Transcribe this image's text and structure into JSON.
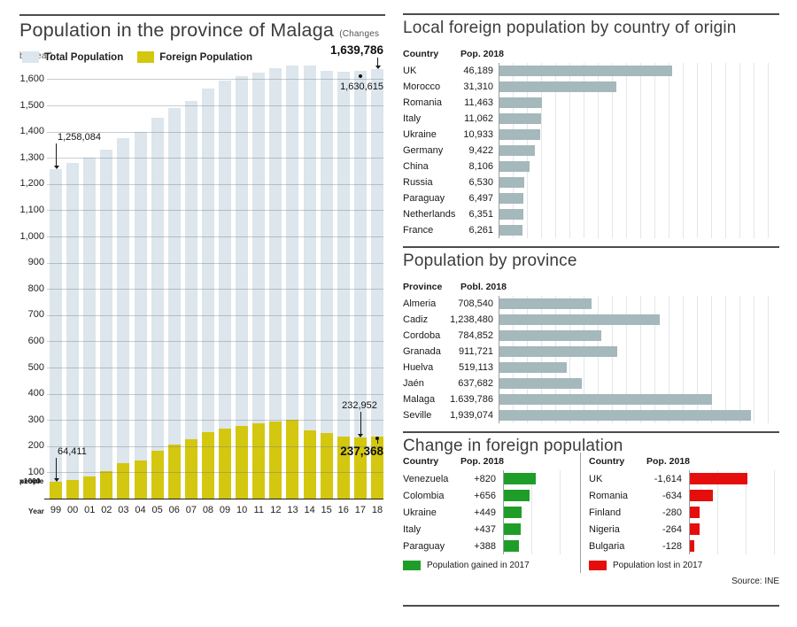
{
  "panels": {
    "malaga": {
      "title": "Population in the province of Malaga",
      "subtitle": "(Changes by year)",
      "legend_total": "Total Population",
      "legend_foreign": "Foreign Population",
      "x_axis_label": "Year",
      "y_unit_line1": "x1000",
      "y_unit_line2": "people"
    },
    "foreign_by_country": {
      "title": "Local foreign population by country of origin",
      "col_country": "Country",
      "col_value": "Pop. 2018"
    },
    "by_province": {
      "title": "Population by province",
      "col_country": "Province",
      "col_value": "Pobl. 2018"
    },
    "change": {
      "title": "Change in foreign population",
      "gained_col_country": "Country",
      "gained_col_value": "Pop. 2018",
      "lost_col_country": "Country",
      "lost_col_value": "Pop. 2018",
      "legend_gained": "Population gained in 2017",
      "legend_lost": "Population lost in 2017"
    },
    "source": "Source: INE"
  },
  "chart_data": [
    {
      "id": "malaga-population-by-year",
      "type": "bar",
      "title": "Population in the province of Malaga",
      "subtitle": "(Changes by year)",
      "xlabel": "Year",
      "ylabel": "x1000 people",
      "ylim": [
        0,
        1680
      ],
      "ytick_step": 100,
      "yticks": [
        "100",
        "200",
        "300",
        "400",
        "500",
        "600",
        "700",
        "800",
        "900",
        "1,000",
        "1,100",
        "1,200",
        "1,300",
        "1,400",
        "1,500",
        "1,600"
      ],
      "grid": true,
      "legend_position": "top-left",
      "categories": [
        "99",
        "00",
        "01",
        "02",
        "03",
        "04",
        "05",
        "06",
        "07",
        "08",
        "09",
        "10",
        "11",
        "12",
        "13",
        "14",
        "15",
        "16",
        "17",
        "18"
      ],
      "series": [
        {
          "name": "Total Population",
          "color": "#dce6ec",
          "values_thousands": [
            1258,
            1279,
            1302,
            1330,
            1375,
            1398,
            1453,
            1491,
            1518,
            1563,
            1593,
            1610,
            1626,
            1641,
            1653,
            1653,
            1632,
            1629,
            1631,
            1640
          ]
        },
        {
          "name": "Foreign Population",
          "color": "#d4c70f",
          "values_thousands": [
            64.4,
            72,
            83,
            106,
            134,
            146,
            182,
            207,
            226,
            252,
            267,
            276,
            287,
            295,
            302,
            260,
            250,
            238,
            233,
            237.4
          ]
        }
      ],
      "annotations": {
        "total_first": "1,258,084",
        "total_2017": "1,630,615",
        "total_2018": "1,639,786",
        "foreign_first": "64,411",
        "foreign_2017": "232,952",
        "foreign_2018": "237,368"
      }
    },
    {
      "id": "local-foreign-population-by-country",
      "type": "bar-horizontal",
      "title": "Local foreign population by country of origin",
      "bar_color": "#a5b8bb",
      "xmax": 75000,
      "grid": true,
      "rows": [
        {
          "label": "UK",
          "display": "46,189",
          "value": 46189
        },
        {
          "label": "Morocco",
          "display": "31,310",
          "value": 31310
        },
        {
          "label": "Romania",
          "display": "11,463",
          "value": 11463
        },
        {
          "label": "Italy",
          "display": "11,062",
          "value": 11062
        },
        {
          "label": "Ukraine",
          "display": "10,933",
          "value": 10933
        },
        {
          "label": "Germany",
          "display": "9,422",
          "value": 9422
        },
        {
          "label": "China",
          "display": "8,106",
          "value": 8106
        },
        {
          "label": "Russia",
          "display": "6,530",
          "value": 6530
        },
        {
          "label": "Paraguay",
          "display": "6,497",
          "value": 6497
        },
        {
          "label": "Netherlands",
          "display": "6,351",
          "value": 6351
        },
        {
          "label": "France",
          "display": "6,261",
          "value": 6261
        }
      ]
    },
    {
      "id": "population-by-province",
      "type": "bar-horizontal",
      "title": "Population by province",
      "bar_color": "#a5b8bb",
      "xmax": 2160000,
      "grid": true,
      "rows": [
        {
          "label": "Almeria",
          "display": "708,540",
          "value": 708540
        },
        {
          "label": "Cadiz",
          "display": "1,238,480",
          "value": 1238480
        },
        {
          "label": "Cordoba",
          "display": "784,852",
          "value": 784852
        },
        {
          "label": "Granada",
          "display": "911,721",
          "value": 911721
        },
        {
          "label": "Huelva",
          "display": "519,113",
          "value": 519113
        },
        {
          "label": "Jaén",
          "display": "637,682",
          "value": 637682
        },
        {
          "label": "Malaga",
          "display": "1.639,786",
          "value": 1639786
        },
        {
          "label": "Seville",
          "display": "1,939,074",
          "value": 1939074
        }
      ]
    },
    {
      "id": "foreign-population-gained-2017",
      "type": "bar-horizontal",
      "title": "Change in foreign population — gained",
      "bar_color": "#1e9e28",
      "xmax": 1800,
      "grid": true,
      "rows": [
        {
          "label": "Venezuela",
          "display": "+820",
          "value": 820
        },
        {
          "label": "Colombia",
          "display": "+656",
          "value": 656
        },
        {
          "label": "Ukraine",
          "display": "+449",
          "value": 449
        },
        {
          "label": "Italy",
          "display": "+437",
          "value": 437
        },
        {
          "label": "Paraguay",
          "display": "+388",
          "value": 388
        }
      ]
    },
    {
      "id": "foreign-population-lost-2017",
      "type": "bar-horizontal",
      "title": "Change in foreign population — lost",
      "bar_color": "#e60d0d",
      "xmax": 2500,
      "grid": true,
      "rows": [
        {
          "label": "UK",
          "display": "-1,614",
          "value": 1614
        },
        {
          "label": "Romania",
          "display": "-634",
          "value": 634
        },
        {
          "label": "Finland",
          "display": "-280",
          "value": 280
        },
        {
          "label": "Nigeria",
          "display": "-264",
          "value": 264
        },
        {
          "label": "Bulgaria",
          "display": "-128",
          "value": 128
        }
      ]
    }
  ]
}
